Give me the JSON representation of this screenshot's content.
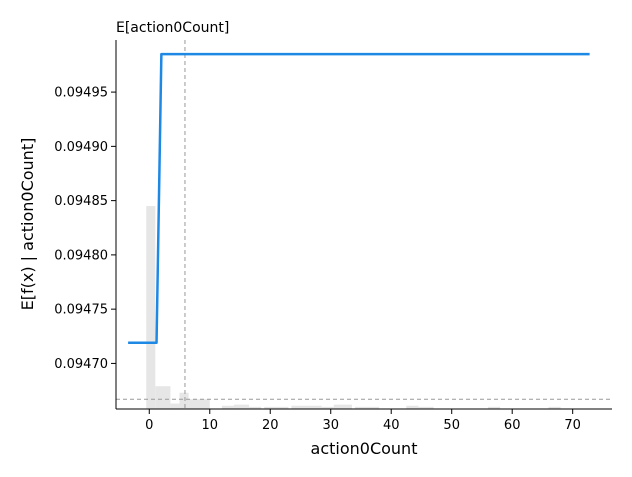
{
  "chart_data": {
    "type": "line",
    "title": "E[action0Count]",
    "xlabel": "action0Count",
    "ylabel": "E[f(x) | action0Count]",
    "xlim": [
      -5.5,
      76.5
    ],
    "ylim": [
      0.094658,
      0.094998
    ],
    "xticks": [
      "0",
      "10",
      "20",
      "30",
      "40",
      "50",
      "60",
      "70"
    ],
    "yticks": [
      "0.09470",
      "0.09475",
      "0.09480",
      "0.09485",
      "0.09490",
      "0.09495"
    ],
    "grid": false,
    "series": [
      {
        "x": [
          -3.5,
          1.2,
          2.0,
          72.8
        ],
        "y": [
          0.094719,
          0.094719,
          0.094985,
          0.094985
        ],
        "color": "#1e88e5"
      }
    ],
    "histogram": {
      "color": "#e6e6e6",
      "bins": [
        {
          "x0": -0.5,
          "x1": 1.0,
          "y": 0.094845
        },
        {
          "x0": 1.0,
          "x1": 3.5,
          "y": 0.094679
        },
        {
          "x0": 3.5,
          "x1": 5.0,
          "y": 0.094663
        },
        {
          "x0": 5.0,
          "x1": 6.5,
          "y": 0.094673
        },
        {
          "x0": 6.5,
          "x1": 10.0,
          "y": 0.094667
        },
        {
          "x0": 12.0,
          "x1": 14.0,
          "y": 0.094661
        },
        {
          "x0": 14.0,
          "x1": 16.5,
          "y": 0.094662
        },
        {
          "x0": 16.5,
          "x1": 18.5,
          "y": 0.09466
        },
        {
          "x0": 19.0,
          "x1": 23.0,
          "y": 0.09466
        },
        {
          "x0": 23.5,
          "x1": 28.5,
          "y": 0.094661
        },
        {
          "x0": 28.5,
          "x1": 30.5,
          "y": 0.09466
        },
        {
          "x0": 30.5,
          "x1": 33.5,
          "y": 0.094662
        },
        {
          "x0": 34.0,
          "x1": 38.0,
          "y": 0.09466
        },
        {
          "x0": 42.5,
          "x1": 44.5,
          "y": 0.094661
        },
        {
          "x0": 44.5,
          "x1": 47.0,
          "y": 0.09466
        },
        {
          "x0": 56.0,
          "x1": 58.0,
          "y": 0.09466
        },
        {
          "x0": 66.0,
          "x1": 68.0,
          "y": 0.09466
        }
      ]
    },
    "reference_lines": {
      "vertical_x": 5.9,
      "horizontal_y": 0.094667,
      "color": "#999999",
      "style": "dashed"
    }
  }
}
